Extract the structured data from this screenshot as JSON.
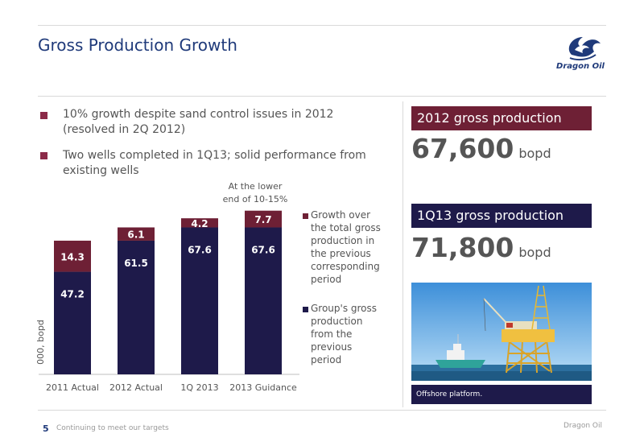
{
  "header": {
    "title": "Gross Production Growth",
    "logo_text": "Dragon Oil"
  },
  "bullets": [
    {
      "lines": [
        "10% growth despite sand control issues in 2012",
        "(resolved in 2Q 2012)"
      ]
    },
    {
      "lines": [
        "Two wells completed in 1Q13; solid performance from",
        "existing wells"
      ]
    }
  ],
  "chart_data": {
    "type": "bar",
    "stacked": true,
    "ylabel": "000, bopd",
    "categories": [
      "2011 Actual",
      "2012 Actual",
      "1Q 2013",
      "2013 Guidance"
    ],
    "series": [
      {
        "name": "Group's gross production from the previous period",
        "values": [
          47.2,
          61.5,
          67.6,
          67.6
        ],
        "color": "#1e1a4a"
      },
      {
        "name": "Growth over the total gross production in the previous corresponding period",
        "values": [
          14.3,
          6.1,
          4.2,
          7.7
        ],
        "color": "#6e2035"
      }
    ],
    "annotation": [
      "At the lower",
      "end of 10-15%"
    ],
    "ylim": [
      0,
      80
    ]
  },
  "legend": {
    "growth": [
      "Growth over",
      "the total gross",
      "production in",
      "the previous",
      "corresponding",
      "period"
    ],
    "base": [
      "Group's gross",
      "production",
      "from the",
      "previous",
      "period"
    ]
  },
  "stats": [
    {
      "label": "2012 gross production",
      "value": "67,600",
      "unit": "bopd",
      "color": "#6e2035"
    },
    {
      "label": "1Q13 gross production",
      "value": "71,800",
      "unit": "bopd",
      "color": "#1e1a4a"
    }
  ],
  "photo": {
    "caption": "Offshore platform."
  },
  "footer": {
    "page": "5",
    "text": "Continuing to meet our targets",
    "brand": "Dragon Oil"
  }
}
